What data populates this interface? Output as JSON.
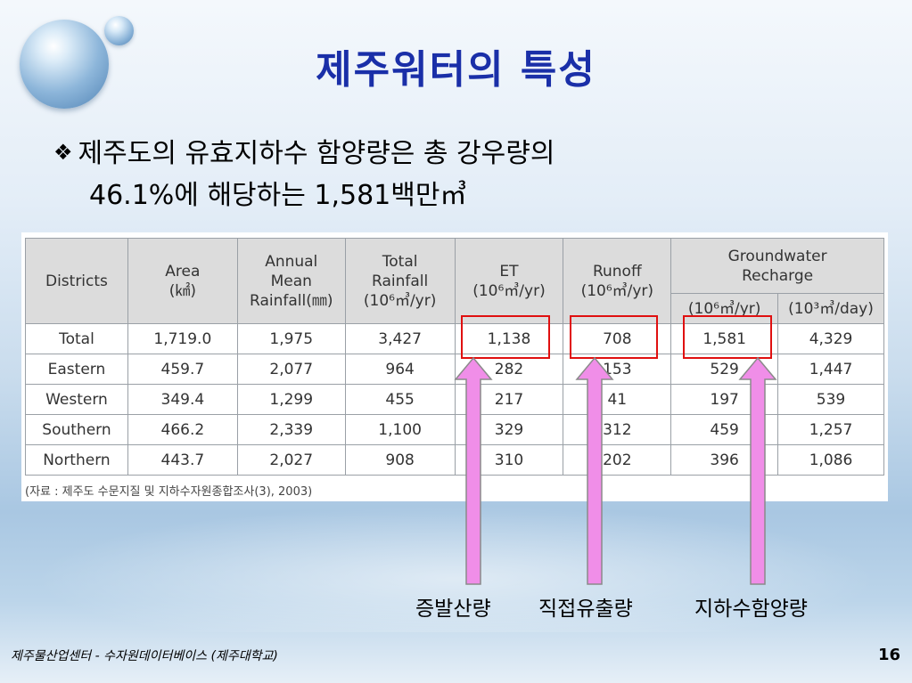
{
  "slide": {
    "title": "제주워터의 특성",
    "bullet_line1": "제주도의 유효지하수 함양량은 총 강우량의",
    "bullet_line2": "46.1%에 해당하는 1,581백만㎥",
    "page_number": "16",
    "footer": "제주물산업센터 - 수자원데이터베이스 (제주대학교)"
  },
  "table": {
    "headers": {
      "districts": "Districts",
      "area": "Area",
      "area_unit": "(㎢)",
      "rain1": "Annual",
      "rain2": "Mean",
      "rain3": "Rainfall(㎜)",
      "total1": "Total",
      "total2": "Rainfall",
      "total3": "(10⁶㎥/yr)",
      "et": "ET",
      "et_unit": "(10⁶㎥/yr)",
      "runoff": "Runoff",
      "runoff_unit": "(10⁶㎥/yr)",
      "gw1": "Groundwater",
      "gw2": "Recharge",
      "gw_unit_yr": "(10⁶㎥/yr)",
      "gw_unit_day": "(10³㎥/day)"
    },
    "rows": [
      [
        "Total",
        "1,719.0",
        "1,975",
        "3,427",
        "1,138",
        "708",
        "1,581",
        "4,329"
      ],
      [
        "Eastern",
        "459.7",
        "2,077",
        "964",
        "282",
        "153",
        "529",
        "1,447"
      ],
      [
        "Western",
        "349.4",
        "1,299",
        "455",
        "217",
        "41",
        "197",
        "539"
      ],
      [
        "Southern",
        "466.2",
        "2,339",
        "1,100",
        "329",
        "312",
        "459",
        "1,257"
      ],
      [
        "Northern",
        "443.7",
        "2,027",
        "908",
        "310",
        "202",
        "396",
        "1,086"
      ]
    ],
    "source": "(자료 : 제주도 수문지질 및 지하수자원종합조사(3), 2003)"
  },
  "annotations": {
    "et_label": "증발산량",
    "runoff_label": "직접유출량",
    "recharge_label": "지하수함양량",
    "highlight_color": "#e01010",
    "arrow_color": "#f08ee8"
  }
}
